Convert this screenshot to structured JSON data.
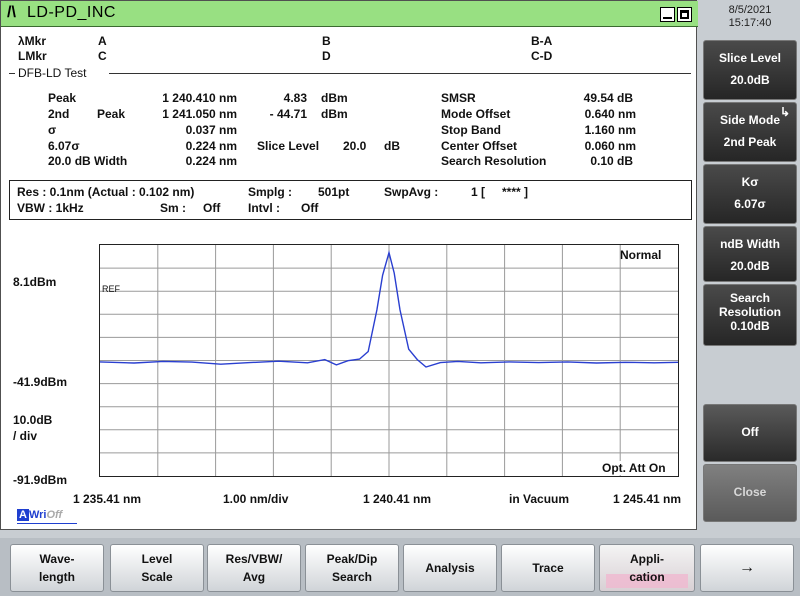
{
  "title": "LD-PD_INC",
  "title_symbol": "/\\",
  "datetime": {
    "date": "8/5/2021",
    "time": "15:17:40"
  },
  "markers": {
    "lambda_label": "λMkr",
    "l_label": "LMkr",
    "a": "A",
    "b": "B",
    "ba": "B-A",
    "c": "C",
    "d": "D",
    "cd": "C-D"
  },
  "section_title": "DFB-LD Test",
  "results": {
    "peak_label": "Peak",
    "peak_wl": "1 240.410 nm",
    "peak_pwr": "4.83",
    "peak_unit": "dBm",
    "second_label": "2nd",
    "second_peak_label": "Peak",
    "second_wl": "1 241.050 nm",
    "second_pwr": "- 44.71",
    "second_unit": "dBm",
    "sigma_label": "σ",
    "sigma_val": "0.037 nm",
    "ksigma_label": "6.07σ",
    "ksigma_val": "0.224 nm",
    "slice_label": "Slice Level",
    "slice_val": "20.0",
    "slice_unit": "dB",
    "width_label": "20.0  dB Width",
    "width_val": "0.224 nm",
    "smsr_label": "SMSR",
    "smsr_val": "49.54 dB",
    "mode_offset_label": "Mode Offset",
    "mode_offset_val": "0.640 nm",
    "stop_band_label": "Stop Band",
    "stop_band_val": "1.160 nm",
    "center_offset_label": "Center Offset",
    "center_offset_val": "0.060 nm",
    "search_res_label": "Search Resolution",
    "search_res_val": "0.10  dB"
  },
  "info": {
    "res": "Res :  0.1nm  (Actual :  0.102 nm)",
    "smplg_label": "Smplg :",
    "smplg_val": "501pt",
    "swpavg_label": "SwpAvg :",
    "swpavg_val": "1 [",
    "swpavg_stars": "****  ]",
    "vbw": "VBW :     1kHz",
    "sm_label": "Sm :",
    "sm_val": "Off",
    "intvl_label": "Intvl :",
    "intvl_val": "Off"
  },
  "plot": {
    "mode": "Normal",
    "ref_label": "REF",
    "y_top": "8.1dBm",
    "y_mid": "-41.9dBm",
    "y_scale_1": "10.0dB",
    "y_scale_2": "/ div",
    "y_bottom": "-91.9dBm",
    "x_start": "1 235.41 nm",
    "x_div": "1.00 nm/div",
    "x_center": "1 240.41 nm",
    "x_medium": "in Vacuum",
    "x_stop": "1 245.41 nm",
    "att": "Opt. Att On",
    "trace_color": "#2a3fd0"
  },
  "chart_data": {
    "type": "line",
    "xlabel": "",
    "ylabel": "",
    "xlim": [
      1235.41,
      1245.41
    ],
    "ylim": [
      -91.9,
      8.1
    ],
    "grid": true,
    "series": [
      {
        "x": [
          1235.41,
          1236.0,
          1236.5,
          1237.0,
          1237.5,
          1238.0,
          1238.5,
          1239.0,
          1239.3,
          1239.5,
          1239.7,
          1239.9,
          1240.05,
          1240.2,
          1240.3,
          1240.41,
          1240.5,
          1240.6,
          1240.75,
          1240.9,
          1241.05,
          1241.3,
          1241.6,
          1242.0,
          1242.5,
          1243.0,
          1243.5,
          1244.0,
          1244.5,
          1245.0,
          1245.41
        ],
        "y": [
          -42.5,
          -43.0,
          -42.3,
          -42.6,
          -43.5,
          -42.8,
          -42.2,
          -42.9,
          -41.5,
          -43.8,
          -42.0,
          -41.3,
          -38.0,
          -20.0,
          -5.0,
          4.83,
          -4.0,
          -20.0,
          -37.0,
          -41.5,
          -44.7,
          -42.8,
          -42.3,
          -42.9,
          -42.5,
          -42.8,
          -42.5,
          -43.0,
          -42.7,
          -42.9,
          -42.7
        ]
      }
    ]
  },
  "right_keys": [
    {
      "l1": "Slice Level",
      "l2": "20.0dB"
    },
    {
      "l1": "Side Mode",
      "l2": "2nd Peak",
      "arrow": "↳"
    },
    {
      "l1": "Kσ",
      "l2": "6.07σ"
    },
    {
      "l1": "ndB Width",
      "l2": "20.0dB"
    },
    {
      "l1": "Search",
      "l2": "Resolution",
      "l3": "0.10dB"
    },
    {
      "l1": "Off"
    },
    {
      "l1": "Close"
    }
  ],
  "bottom_keys": [
    {
      "l1": "Wave-",
      "l2": "length"
    },
    {
      "l1": "Level",
      "l2": "Scale"
    },
    {
      "l1": "Res/VBW/",
      "l2": "Avg"
    },
    {
      "l1": "Peak/Dip",
      "l2": "Search"
    },
    {
      "l1": "Analysis"
    },
    {
      "l1": "Trace"
    },
    {
      "l1": "Appli-",
      "l2": "cation"
    },
    {
      "l1": "→"
    }
  ],
  "status": {
    "a": "A",
    "wri": "Wri",
    "off": "Off"
  }
}
